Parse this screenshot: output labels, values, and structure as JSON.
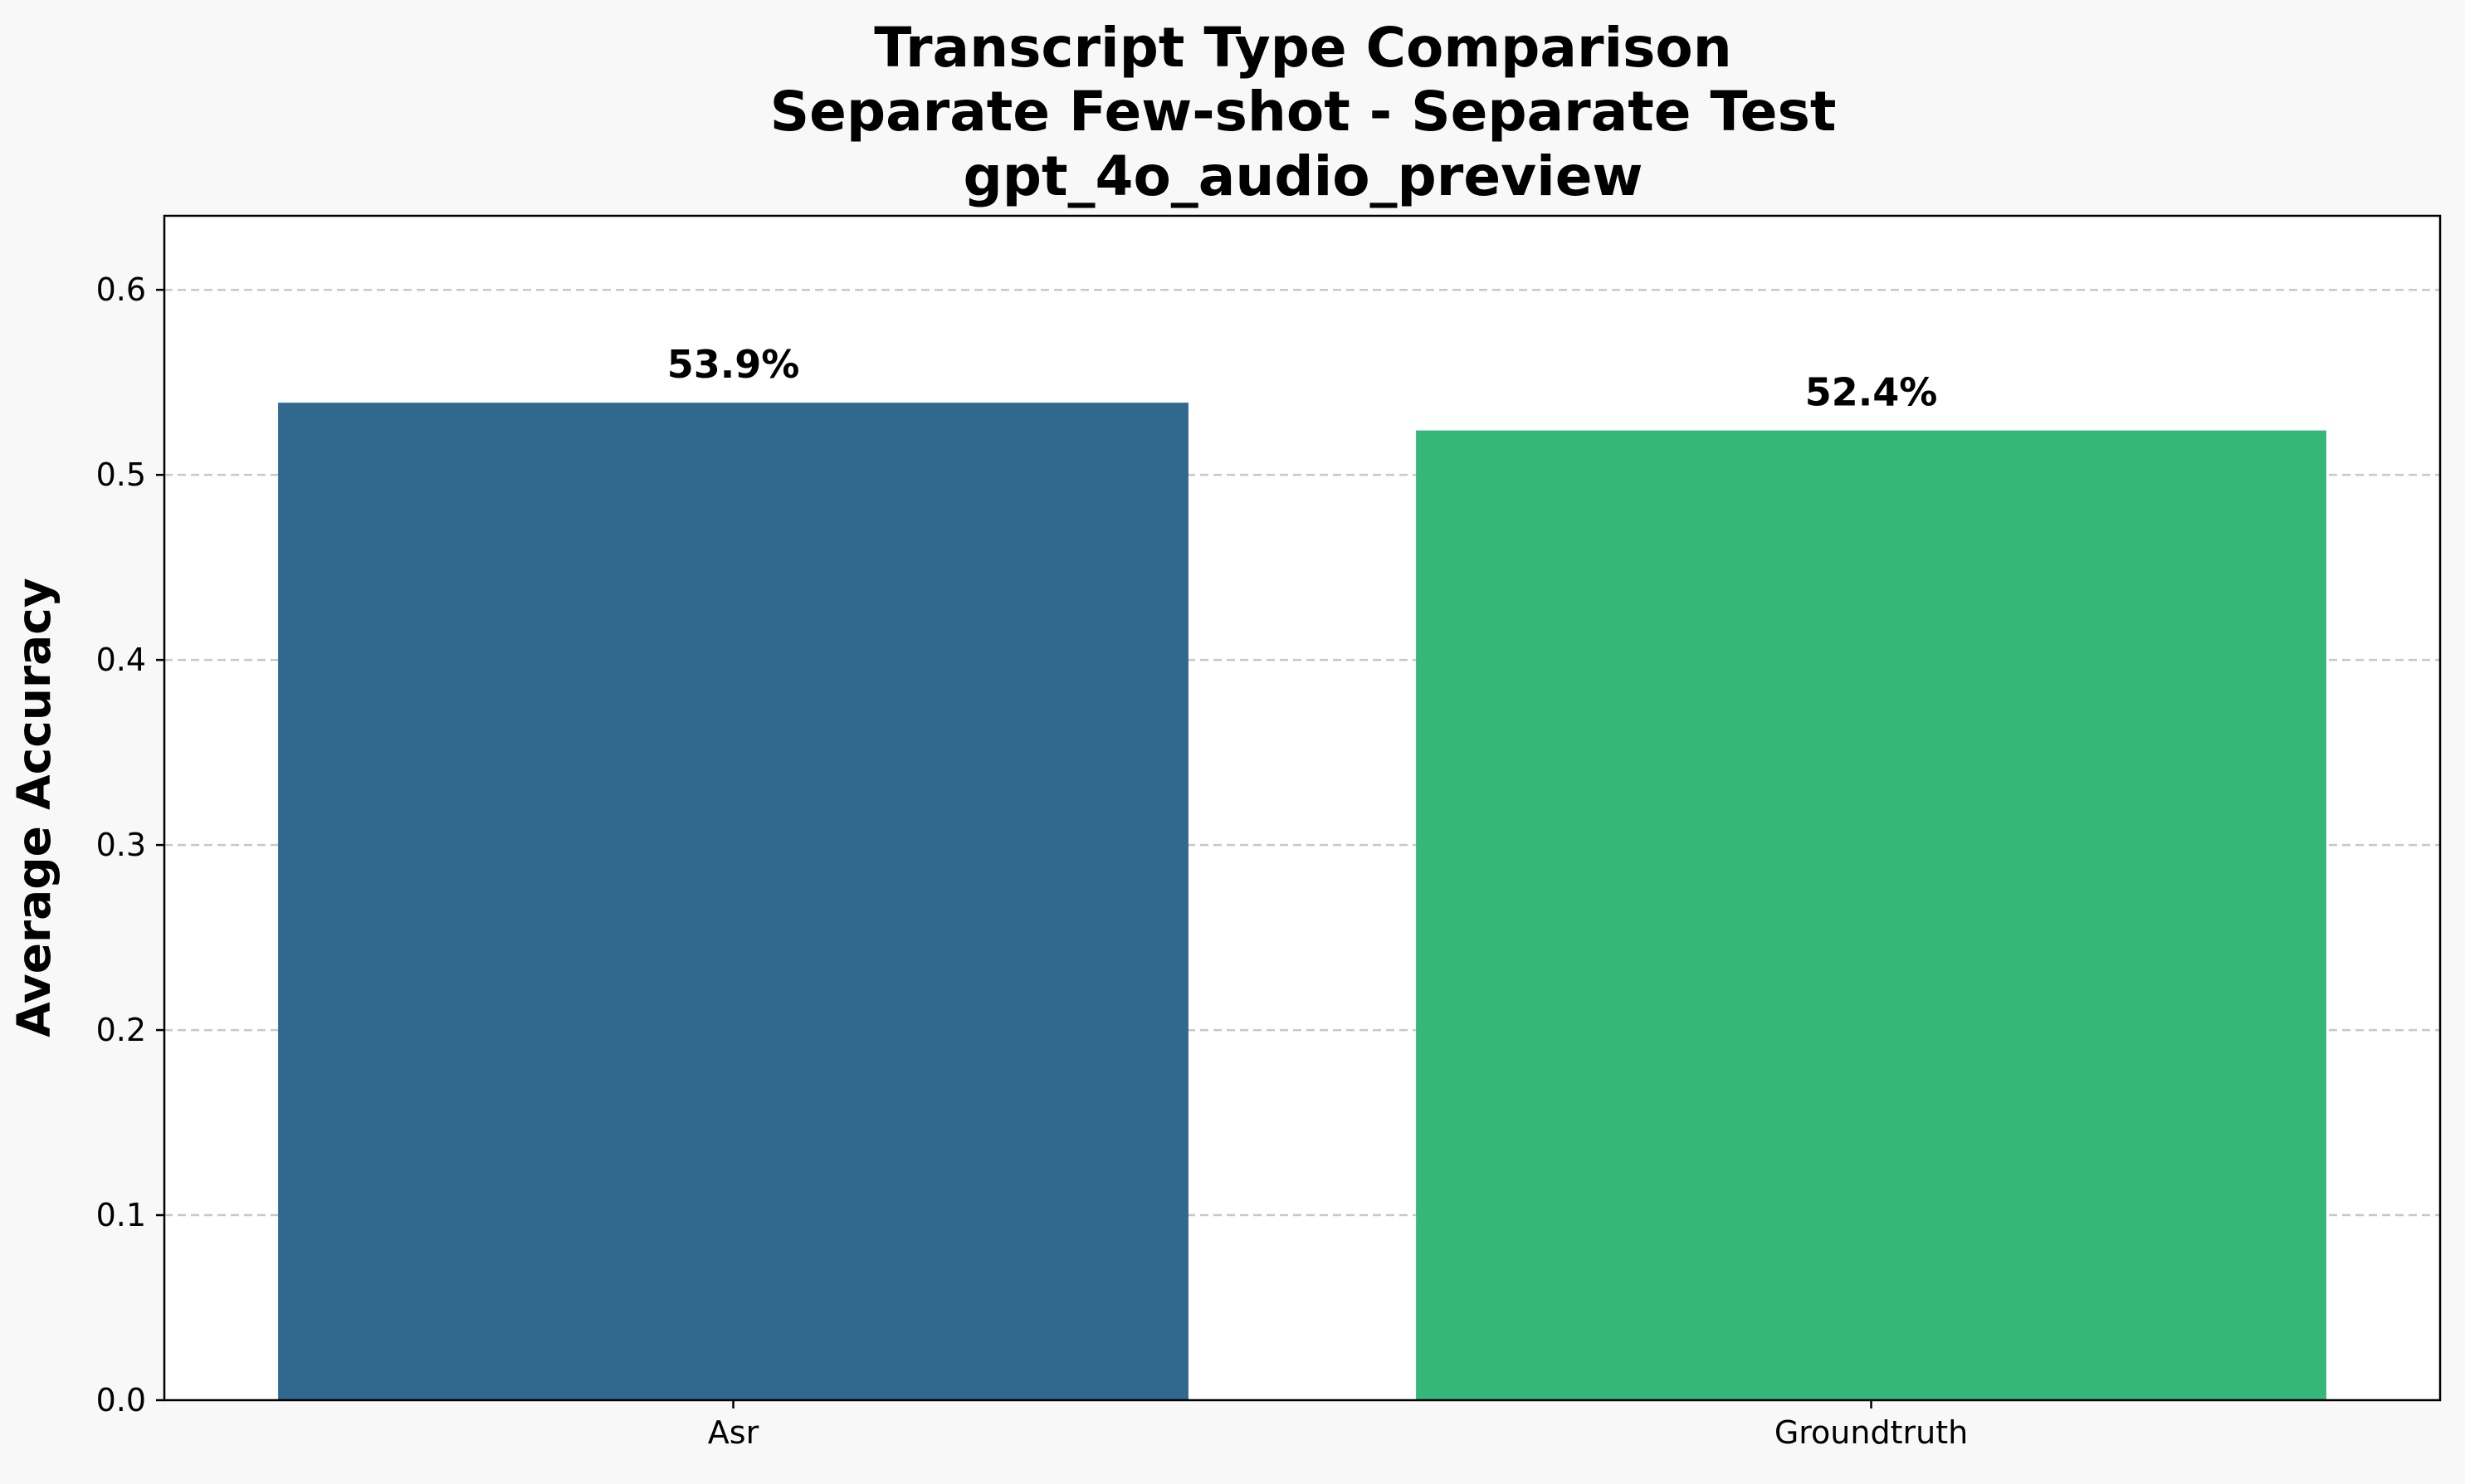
{
  "chart_data": {
    "type": "bar",
    "title_lines": [
      "Transcript Type Comparison",
      "Separate Few-shot - Separate Test",
      "gpt_4o_audio_preview"
    ],
    "xlabel": "",
    "ylabel": "Average Accuracy",
    "categories": [
      "Asr",
      "Groundtruth"
    ],
    "values": [
      0.539,
      0.524
    ],
    "value_labels": [
      "53.9%",
      "52.4%"
    ],
    "bar_colors": [
      "#31688e",
      "#35b779"
    ],
    "ylim": [
      0,
      0.64
    ],
    "yticks": [
      0.0,
      0.1,
      0.2,
      0.3,
      0.4,
      0.5,
      0.6
    ],
    "ytick_labels": [
      "0.0",
      "0.1",
      "0.2",
      "0.3",
      "0.4",
      "0.5",
      "0.6"
    ],
    "grid": "horizontal dashed",
    "colors": {
      "figure_background": "#f8f8f8",
      "axes_background": "#ffffff",
      "grid": "#c8c8c8",
      "axis": "#000000"
    }
  }
}
